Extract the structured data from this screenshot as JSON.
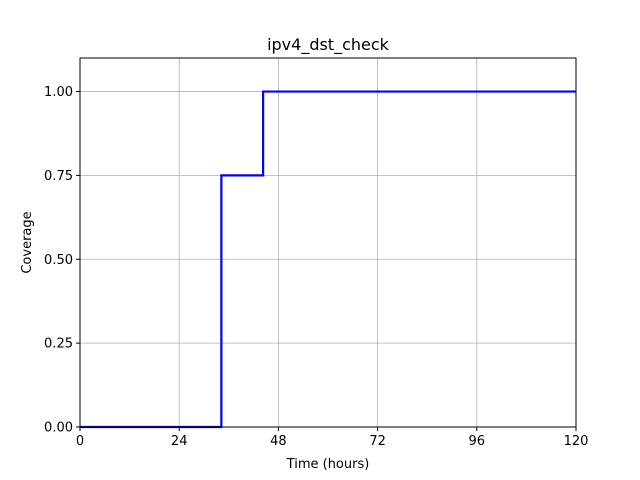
{
  "chart_data": {
    "type": "line",
    "title": "ipv4_dst_check",
    "xlabel": "Time (hours)",
    "ylabel": "Coverage",
    "xlim": [
      0,
      120
    ],
    "ylim": [
      0,
      1.1
    ],
    "xticks": [
      0,
      24,
      48,
      72,
      96,
      120
    ],
    "xtick_labels": [
      "0",
      "24",
      "48",
      "72",
      "96",
      "120"
    ],
    "yticks": [
      0,
      0.25,
      0.5,
      0.75,
      1.0
    ],
    "ytick_labels": [
      "0.00",
      "0.25",
      "0.50",
      "0.75",
      "1.00"
    ],
    "grid": true,
    "step": "post",
    "series": [
      {
        "color": "#0000ff",
        "x": [
          0,
          34.2,
          44.3,
          120
        ],
        "y": [
          0,
          0.75,
          1.0,
          1.0
        ]
      }
    ]
  }
}
